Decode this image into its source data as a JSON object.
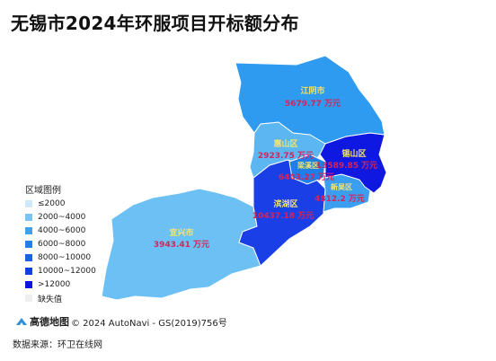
{
  "title": "无锡市2024年环服项目开标额分布",
  "regions": [
    {
      "name": "江阴市",
      "value_label": "5679.77 万元",
      "value": 5679.77,
      "color": "#2E9BF0"
    },
    {
      "name": "惠山区",
      "value_label": "2923.75 万元",
      "value": 2923.75,
      "color": "#5BB6F2"
    },
    {
      "name": "梁溪区",
      "value_label": "6403.27 万元",
      "value": 6403.27,
      "color": "#1F7FE8"
    },
    {
      "name": "锡山区",
      "value_label": "13589.85 万元",
      "value": 13589.85,
      "color": "#0F18E0"
    },
    {
      "name": "新吴区",
      "value_label": "4812.2 万元",
      "value": 4812.2,
      "color": "#3A9FF0"
    },
    {
      "name": "滨湖区",
      "value_label": "10437.18 万元",
      "value": 10437.18,
      "color": "#1A3FE6"
    },
    {
      "name": "宜兴市",
      "value_label": "3943.41 万元",
      "value": 3943.41,
      "color": "#6DC0F4"
    }
  ],
  "legend": {
    "title": "区域图例",
    "items": [
      {
        "label": "≤2000",
        "color": "#CFE8FB"
      },
      {
        "label": "2000~4000",
        "color": "#7CC3F4"
      },
      {
        "label": "4000~6000",
        "color": "#3FA0EE"
      },
      {
        "label": "6000~8000",
        "color": "#1F80E8"
      },
      {
        "label": "8000~10000",
        "color": "#1763E2"
      },
      {
        "label": "10000~12000",
        "color": "#1340E0"
      },
      {
        "label": ">12000",
        "color": "#0A14DC"
      },
      {
        "label": "缺失值",
        "color": "#EFEFEF"
      }
    ]
  },
  "attribution": {
    "logo": "高德地图",
    "text": "© 2024 AutoNavi - GS(2019)756号"
  },
  "source": "数据来源：环卫在线网"
}
